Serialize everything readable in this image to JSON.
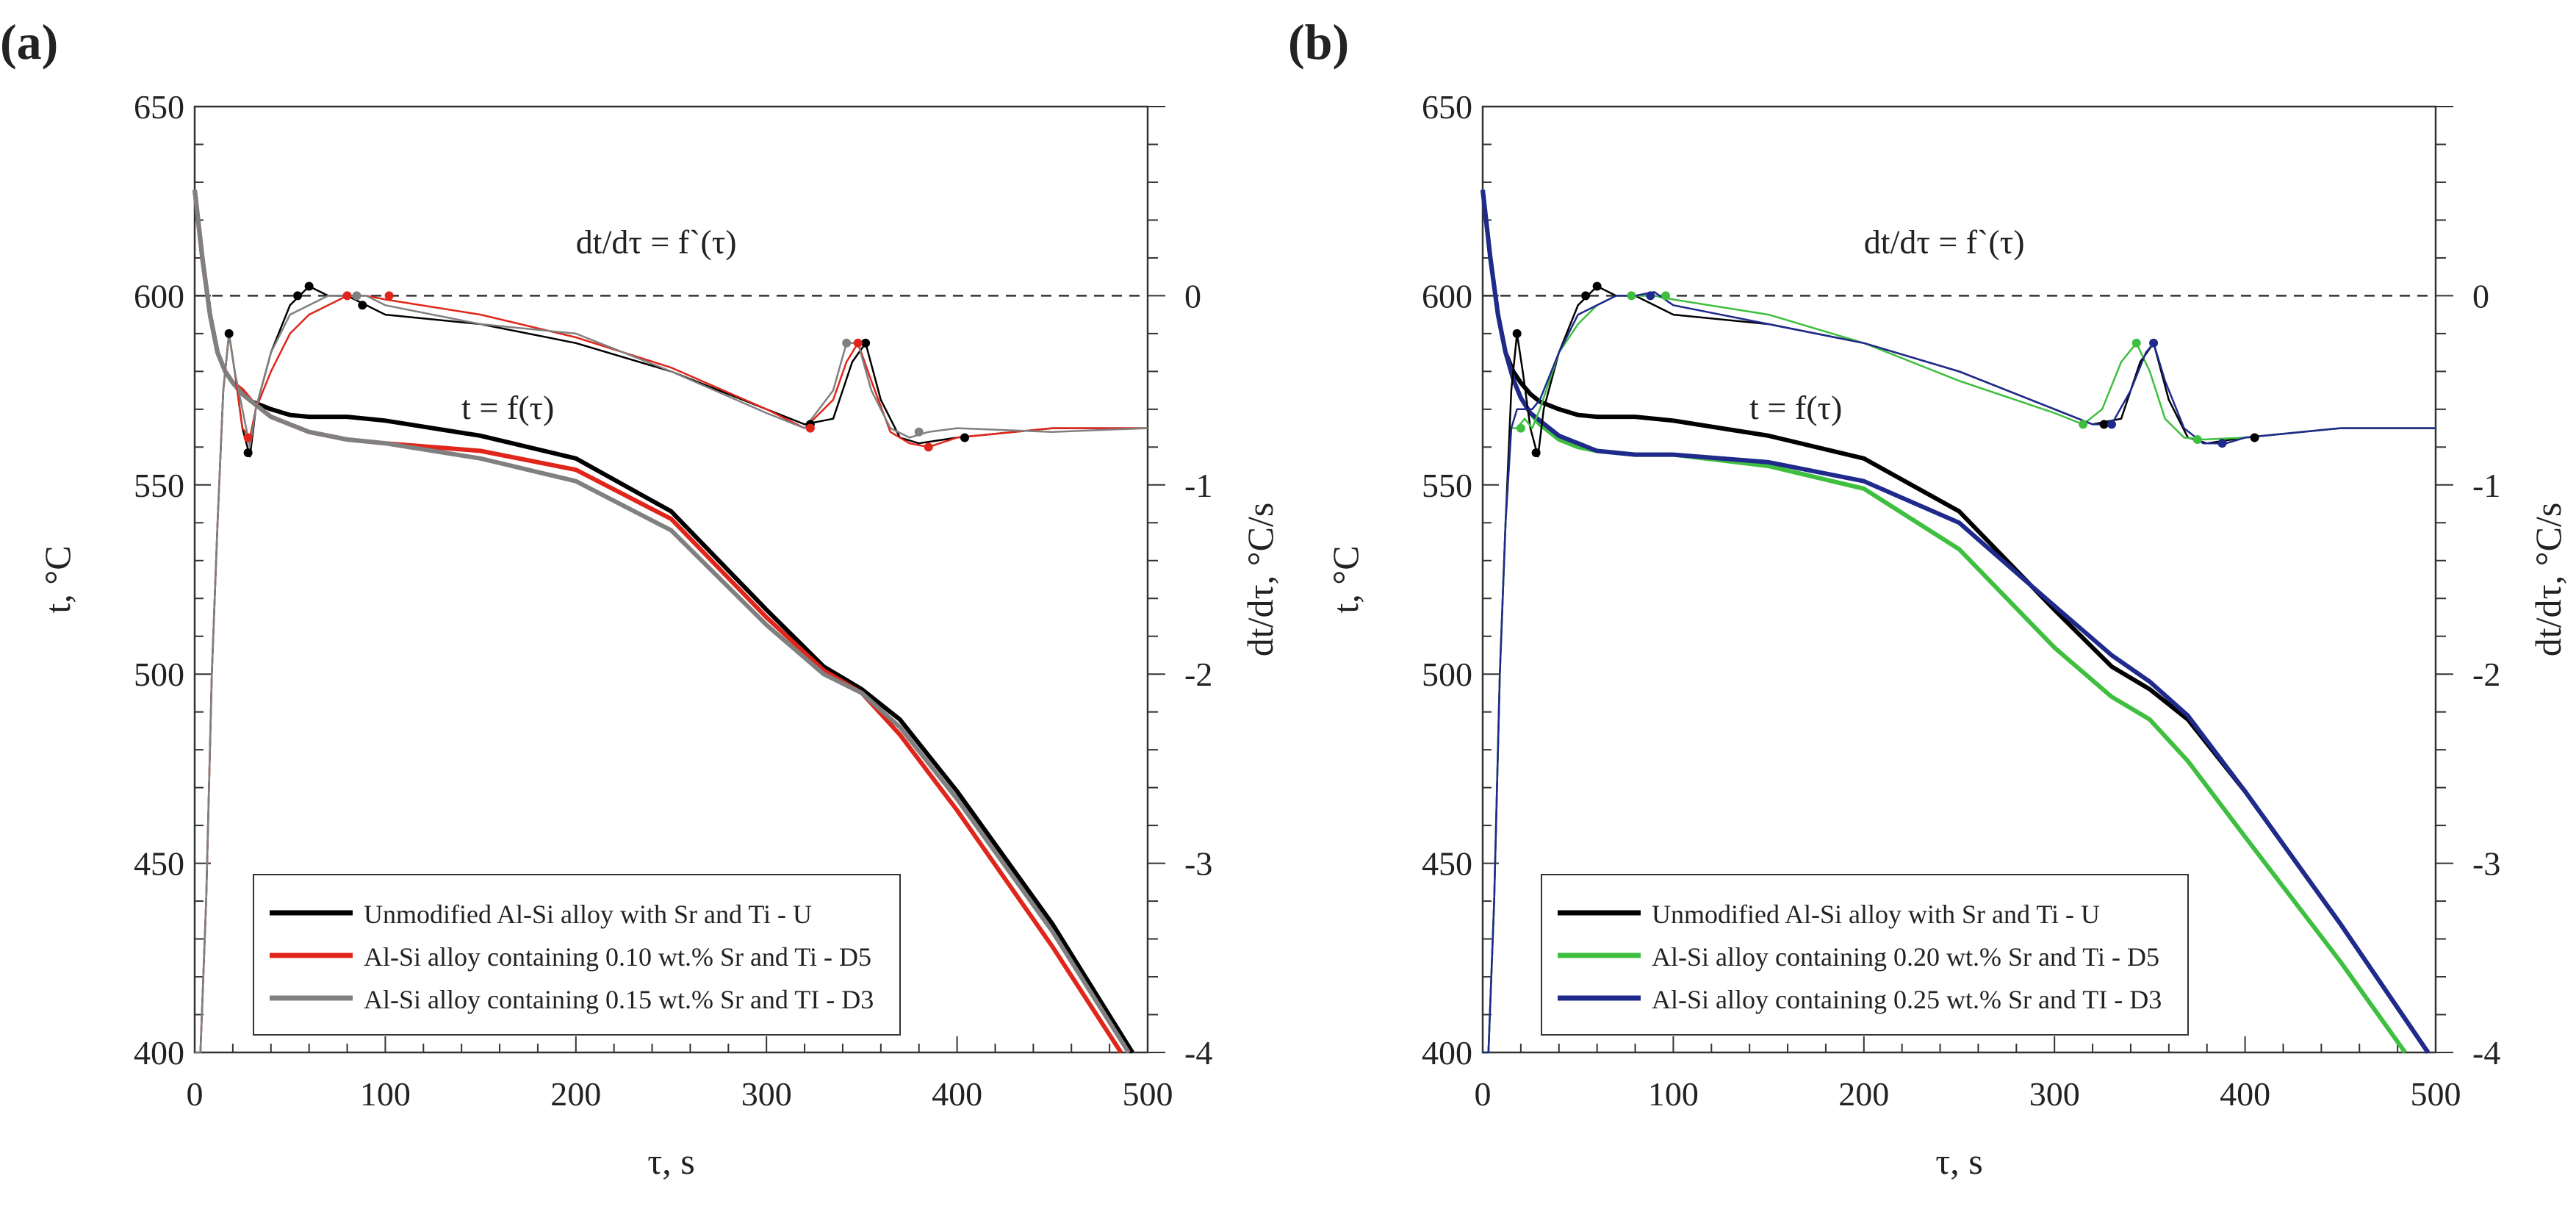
{
  "figure": {
    "panels": [
      "a",
      "b"
    ]
  },
  "chart_data": [
    {
      "panel_label": "(a)",
      "type": "line",
      "xlabel": "τ, s",
      "ylabel": "t, °C",
      "y2label": "dt/dτ, °C/s",
      "xlim": [
        0,
        500
      ],
      "ylim": [
        400,
        650
      ],
      "y2lim": [
        -4,
        1
      ],
      "x_ticks": [
        "0",
        "100",
        "200",
        "300",
        "400",
        "500"
      ],
      "y_ticks": [
        "400",
        "450",
        "500",
        "550",
        "600",
        "650"
      ],
      "y2_ticks": [
        "-4",
        "-3",
        "-2",
        "-1",
        "0"
      ],
      "annotations": {
        "derivative": "dt/dτ = f`(τ)",
        "temperature": "t = f(τ)"
      },
      "legend": {
        "position": "bottom-left",
        "entries": [
          {
            "name": "Unmodified Al-Si alloy with Sr and Ti - U",
            "color": "#000000"
          },
          {
            "name": "Al-Si alloy containing 0.10 wt.% Sr and Ti - D5",
            "color": "#e0261b"
          },
          {
            "name": "Al-Si alloy containing 0.15 wt.% Sr and TI - D3",
            "color": "#808080"
          }
        ]
      },
      "series": [
        {
          "name": "U - t",
          "color": "#000000",
          "axis": "left",
          "x": [
            0,
            4,
            8,
            12,
            16,
            20,
            25,
            30,
            40,
            50,
            60,
            80,
            100,
            150,
            200,
            250,
            300,
            330,
            350,
            370,
            400,
            450,
            492
          ],
          "y": [
            628,
            610,
            595,
            585,
            580,
            577,
            574,
            572,
            570,
            568.5,
            568,
            568,
            567,
            563,
            557,
            543,
            517,
            502,
            496,
            488,
            469,
            434,
            400
          ]
        },
        {
          "name": "D5 - t",
          "color": "#e0261b",
          "axis": "left",
          "x": [
            0,
            4,
            8,
            12,
            16,
            20,
            25,
            30,
            40,
            50,
            60,
            80,
            100,
            150,
            200,
            250,
            300,
            330,
            350,
            370,
            400,
            450,
            486
          ],
          "y": [
            628,
            610,
            595,
            585,
            580,
            577,
            575,
            572,
            568,
            566,
            564,
            562,
            561,
            559,
            554,
            541,
            515,
            501,
            495,
            484,
            464,
            428,
            400
          ]
        },
        {
          "name": "D3 - t",
          "color": "#808080",
          "axis": "left",
          "x": [
            0,
            4,
            8,
            12,
            16,
            20,
            25,
            30,
            40,
            50,
            60,
            80,
            100,
            150,
            200,
            250,
            300,
            330,
            350,
            370,
            400,
            450,
            490
          ],
          "y": [
            628,
            610,
            595,
            585,
            580,
            577,
            574,
            572,
            568,
            566,
            564,
            562,
            561,
            557,
            551,
            538,
            513,
            500,
            495,
            486,
            467,
            432,
            400
          ]
        },
        {
          "name": "U - dt/dτ",
          "color": "#000000",
          "axis": "right",
          "x": [
            0,
            3,
            6,
            9,
            12,
            15,
            18,
            21,
            25,
            29,
            32,
            40,
            50,
            55,
            60,
            70,
            80,
            90,
            100,
            150,
            200,
            250,
            300,
            320,
            335,
            345,
            352,
            360,
            370,
            380,
            400,
            450,
            500
          ],
          "y": [
            -4,
            -4,
            -3.2,
            -2,
            -1.2,
            -0.5,
            -0.2,
            -0.4,
            -0.7,
            -0.85,
            -0.6,
            -0.3,
            -0.05,
            0,
            0.05,
            0,
            0,
            -0.05,
            -0.1,
            -0.15,
            -0.25,
            -0.4,
            -0.6,
            -0.68,
            -0.65,
            -0.35,
            -0.25,
            -0.55,
            -0.75,
            -0.78,
            -0.75,
            -0.7,
            -0.7
          ]
        },
        {
          "name": "D5 - dt/dτ",
          "color": "#e0261b",
          "axis": "right",
          "x": [
            0,
            3,
            6,
            9,
            12,
            15,
            18,
            21,
            25,
            29,
            32,
            40,
            50,
            60,
            70,
            80,
            90,
            100,
            150,
            200,
            250,
            300,
            320,
            335,
            342,
            348,
            355,
            365,
            375,
            385,
            400,
            450,
            500
          ],
          "y": [
            -4,
            -4,
            -3.2,
            -2,
            -1.2,
            -0.5,
            -0.2,
            -0.4,
            -0.7,
            -0.75,
            -0.6,
            -0.4,
            -0.2,
            -0.1,
            -0.05,
            0,
            0,
            -0.02,
            -0.1,
            -0.22,
            -0.38,
            -0.6,
            -0.7,
            -0.55,
            -0.35,
            -0.25,
            -0.45,
            -0.72,
            -0.78,
            -0.8,
            -0.75,
            -0.7,
            -0.7
          ]
        },
        {
          "name": "D3 - dt/dτ",
          "color": "#808080",
          "axis": "right",
          "x": [
            0,
            3,
            6,
            9,
            12,
            15,
            18,
            21,
            25,
            29,
            32,
            40,
            50,
            60,
            70,
            80,
            90,
            100,
            150,
            200,
            250,
            300,
            320,
            335,
            342,
            348,
            355,
            365,
            375,
            385,
            400,
            450,
            500
          ],
          "y": [
            -4,
            -4,
            -3.2,
            -2,
            -1.2,
            -0.5,
            -0.2,
            -0.4,
            -0.6,
            -0.8,
            -0.6,
            -0.3,
            -0.1,
            -0.05,
            0,
            0,
            0,
            -0.05,
            -0.15,
            -0.2,
            -0.4,
            -0.62,
            -0.7,
            -0.5,
            -0.25,
            -0.25,
            -0.5,
            -0.7,
            -0.75,
            -0.72,
            -0.7,
            -0.72,
            -0.7
          ]
        }
      ],
      "markers": [
        {
          "x": 18,
          "y": -0.2,
          "color": "#000000"
        },
        {
          "x": 28,
          "y": -0.83,
          "color": "#000000"
        },
        {
          "x": 54,
          "y": 0,
          "color": "#000000"
        },
        {
          "x": 60,
          "y": 0.05,
          "color": "#000000"
        },
        {
          "x": 88,
          "y": -0.05,
          "color": "#000000"
        },
        {
          "x": 323,
          "y": -0.68,
          "color": "#000000"
        },
        {
          "x": 352,
          "y": -0.25,
          "color": "#000000"
        },
        {
          "x": 404,
          "y": -0.75,
          "color": "#000000"
        },
        {
          "x": 28,
          "y": -0.75,
          "color": "#e0261b"
        },
        {
          "x": 80,
          "y": 0,
          "color": "#e0261b"
        },
        {
          "x": 102,
          "y": 0,
          "color": "#e0261b"
        },
        {
          "x": 323,
          "y": -0.7,
          "color": "#e0261b"
        },
        {
          "x": 348,
          "y": -0.25,
          "color": "#e0261b"
        },
        {
          "x": 385,
          "y": -0.8,
          "color": "#e0261b"
        },
        {
          "x": 85,
          "y": 0,
          "color": "#808080"
        },
        {
          "x": 342,
          "y": -0.25,
          "color": "#808080"
        },
        {
          "x": 380,
          "y": -0.72,
          "color": "#808080"
        }
      ]
    },
    {
      "panel_label": "(b)",
      "type": "line",
      "xlabel": "τ, s",
      "ylabel": "t, °C",
      "y2label": "dt/dτ, °C/s",
      "xlim": [
        0,
        500
      ],
      "ylim": [
        400,
        650
      ],
      "y2lim": [
        -4,
        1
      ],
      "x_ticks": [
        "0",
        "100",
        "200",
        "300",
        "400",
        "500"
      ],
      "y_ticks": [
        "400",
        "450",
        "500",
        "550",
        "600",
        "650"
      ],
      "y2_ticks": [
        "-4",
        "-3",
        "-2",
        "-1",
        "0"
      ],
      "annotations": {
        "derivative": "dt/dτ = f`(τ)",
        "temperature": "t = f(τ)"
      },
      "legend": {
        "position": "bottom-left",
        "entries": [
          {
            "name": "Unmodified Al-Si alloy with Sr and Ti - U",
            "color": "#000000"
          },
          {
            "name": "Al-Si alloy containing 0.20 wt.% Sr and Ti - D5",
            "color": "#3fbf3f"
          },
          {
            "name": "Al-Si alloy containing 0.25 wt.% Sr and TI - D3",
            "color": "#1f2a8c"
          }
        ]
      },
      "series": [
        {
          "name": "U - t",
          "color": "#000000",
          "axis": "left",
          "x": [
            0,
            4,
            8,
            12,
            16,
            20,
            25,
            30,
            40,
            50,
            60,
            80,
            100,
            150,
            200,
            250,
            300,
            330,
            350,
            370,
            400,
            450,
            496
          ],
          "y": [
            628,
            610,
            595,
            585,
            580,
            577,
            574,
            572,
            570,
            568.5,
            568,
            568,
            567,
            563,
            557,
            543,
            517,
            502,
            496,
            488,
            469,
            434,
            400
          ]
        },
        {
          "name": "D5 - t",
          "color": "#3fbf3f",
          "axis": "left",
          "x": [
            0,
            4,
            8,
            12,
            16,
            20,
            25,
            30,
            40,
            50,
            60,
            80,
            100,
            150,
            200,
            250,
            300,
            330,
            350,
            370,
            400,
            450,
            484
          ],
          "y": [
            628,
            610,
            595,
            585,
            578,
            573,
            569,
            566,
            562,
            560,
            559,
            558,
            558,
            555,
            549,
            533,
            507,
            494,
            488,
            477,
            457,
            424,
            400
          ]
        },
        {
          "name": "D3 - t",
          "color": "#1f2a8c",
          "axis": "left",
          "x": [
            0,
            4,
            8,
            12,
            16,
            20,
            25,
            30,
            40,
            50,
            60,
            80,
            100,
            150,
            200,
            250,
            300,
            330,
            350,
            370,
            400,
            450,
            496
          ],
          "y": [
            628,
            610,
            595,
            585,
            578,
            573,
            569,
            567,
            563,
            561,
            559,
            558,
            558,
            556,
            551,
            540,
            518,
            505,
            498,
            489,
            469,
            434,
            400
          ]
        },
        {
          "name": "U - dt/dτ",
          "color": "#000000",
          "axis": "right",
          "x": [
            0,
            3,
            6,
            9,
            12,
            15,
            18,
            21,
            25,
            29,
            32,
            40,
            50,
            55,
            60,
            70,
            80,
            90,
            100,
            150,
            200,
            250,
            300,
            320,
            335,
            345,
            352,
            360,
            370,
            380,
            400,
            450,
            500
          ],
          "y": [
            -4,
            -4,
            -3.2,
            -2,
            -1.2,
            -0.5,
            -0.2,
            -0.4,
            -0.7,
            -0.85,
            -0.6,
            -0.3,
            -0.05,
            0,
            0.05,
            0,
            0,
            -0.05,
            -0.1,
            -0.15,
            -0.25,
            -0.4,
            -0.6,
            -0.68,
            -0.65,
            -0.35,
            -0.25,
            -0.55,
            -0.75,
            -0.78,
            -0.75,
            -0.7,
            -0.7
          ]
        },
        {
          "name": "D5 - dt/dτ",
          "color": "#3fbf3f",
          "axis": "right",
          "x": [
            0,
            3,
            6,
            9,
            12,
            15,
            18,
            22,
            26,
            30,
            40,
            50,
            60,
            70,
            80,
            90,
            100,
            150,
            200,
            250,
            300,
            315,
            325,
            335,
            343,
            350,
            358,
            368,
            378,
            400,
            450,
            500
          ],
          "y": [
            -4,
            -4,
            -3.2,
            -2,
            -1.2,
            -0.7,
            -0.7,
            -0.65,
            -0.7,
            -0.6,
            -0.3,
            -0.15,
            -0.05,
            0,
            0,
            0,
            -0.02,
            -0.1,
            -0.25,
            -0.45,
            -0.62,
            -0.68,
            -0.6,
            -0.35,
            -0.25,
            -0.4,
            -0.65,
            -0.75,
            -0.76,
            -0.75,
            -0.7,
            -0.7
          ]
        },
        {
          "name": "D3 - dt/dτ",
          "color": "#1f2a8c",
          "axis": "right",
          "x": [
            0,
            3,
            6,
            9,
            12,
            15,
            18,
            22,
            26,
            30,
            40,
            50,
            60,
            70,
            80,
            90,
            100,
            150,
            200,
            250,
            300,
            320,
            330,
            340,
            348,
            352,
            358,
            368,
            378,
            390,
            400,
            450,
            500
          ],
          "y": [
            -4,
            -4,
            -3.2,
            -2,
            -1.2,
            -0.7,
            -0.6,
            -0.6,
            -0.6,
            -0.55,
            -0.3,
            -0.1,
            -0.05,
            0,
            0,
            0.02,
            -0.05,
            -0.15,
            -0.25,
            -0.4,
            -0.6,
            -0.68,
            -0.68,
            -0.5,
            -0.3,
            -0.25,
            -0.45,
            -0.7,
            -0.78,
            -0.78,
            -0.75,
            -0.7,
            -0.7
          ]
        }
      ],
      "markers": [
        {
          "x": 18,
          "y": -0.2,
          "color": "#000000"
        },
        {
          "x": 28,
          "y": -0.83,
          "color": "#000000"
        },
        {
          "x": 54,
          "y": 0,
          "color": "#000000"
        },
        {
          "x": 60,
          "y": 0.05,
          "color": "#000000"
        },
        {
          "x": 326,
          "y": -0.68,
          "color": "#000000"
        },
        {
          "x": 405,
          "y": -0.75,
          "color": "#000000"
        },
        {
          "x": 20,
          "y": -0.7,
          "color": "#3fbf3f"
        },
        {
          "x": 78,
          "y": 0,
          "color": "#3fbf3f"
        },
        {
          "x": 96,
          "y": 0,
          "color": "#3fbf3f"
        },
        {
          "x": 315,
          "y": -0.68,
          "color": "#3fbf3f"
        },
        {
          "x": 343,
          "y": -0.25,
          "color": "#3fbf3f"
        },
        {
          "x": 375,
          "y": -0.76,
          "color": "#3fbf3f"
        },
        {
          "x": 88,
          "y": 0,
          "color": "#1f2a8c"
        },
        {
          "x": 330,
          "y": -0.68,
          "color": "#1f2a8c"
        },
        {
          "x": 352,
          "y": -0.25,
          "color": "#1f2a8c"
        },
        {
          "x": 388,
          "y": -0.78,
          "color": "#1f2a8c"
        }
      ]
    }
  ]
}
